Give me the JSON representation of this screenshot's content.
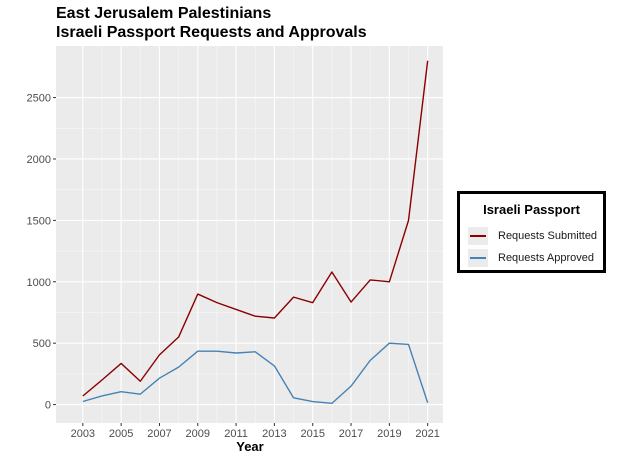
{
  "title_line1": "East Jerusalem Palestinians",
  "title_line2": "Israeli Passport Requests and Approvals",
  "chart_data": {
    "type": "line",
    "xlabel": "Year",
    "ylabel": "",
    "x": [
      2003,
      2004,
      2005,
      2006,
      2007,
      2008,
      2009,
      2010,
      2011,
      2012,
      2013,
      2014,
      2015,
      2016,
      2017,
      2018,
      2019,
      2020,
      2021
    ],
    "x_ticks": [
      2003,
      2005,
      2007,
      2009,
      2011,
      2013,
      2015,
      2017,
      2019,
      2021
    ],
    "y_ticks": [
      0,
      500,
      1000,
      1500,
      2000,
      2500
    ],
    "xlim": [
      2001.6,
      2021.8
    ],
    "ylim": [
      -150,
      2920
    ],
    "grid": true,
    "legend_position": "right",
    "series": [
      {
        "name": "Requests Submitted",
        "color": "#8b0000",
        "values": [
          70,
          200,
          335,
          190,
          405,
          550,
          900,
          830,
          775,
          720,
          705,
          875,
          830,
          1080,
          835,
          1015,
          1000,
          1500,
          2800
        ]
      },
      {
        "name": "Requests Approved",
        "color": "#4682b4",
        "values": [
          25,
          70,
          105,
          85,
          215,
          305,
          435,
          435,
          420,
          430,
          315,
          55,
          25,
          10,
          150,
          360,
          500,
          490,
          15
        ]
      }
    ]
  },
  "legend": {
    "title": "Israeli Passport"
  }
}
